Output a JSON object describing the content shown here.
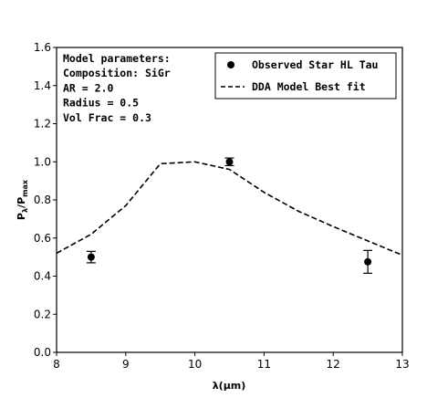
{
  "chart_data": {
    "type": "scatter",
    "xlabel": "λ(μm)",
    "ylabel": "Pλ/Pmax",
    "ylabel_main": "P",
    "ylabel_sub1": "λ",
    "ylabel_sep": "/P",
    "ylabel_sub2": "max",
    "xlim": [
      8,
      13
    ],
    "ylim": [
      0,
      1.6
    ],
    "xticks": [
      "8",
      "9",
      "10",
      "11",
      "12",
      "13"
    ],
    "yticks": [
      "0.0",
      "0.2",
      "0.4",
      "0.6",
      "0.8",
      "1.0",
      "1.2",
      "1.4",
      "1.6"
    ],
    "grid": false,
    "legend_position": "top-right",
    "series": [
      {
        "name": "Observed Star HL Tau",
        "kind": "errorbar-points",
        "color": "#000000",
        "x": [
          8.5,
          10.5,
          12.5
        ],
        "y": [
          0.5,
          1.0,
          0.475
        ],
        "yerr": [
          0.03,
          0.02,
          0.06
        ]
      },
      {
        "name": "DDA Model Best fit",
        "kind": "dashed-line",
        "color": "#000000",
        "x": [
          8.0,
          8.5,
          9.0,
          9.5,
          10.0,
          10.5,
          11.0,
          11.5,
          12.0,
          12.5,
          13.0
        ],
        "y": [
          0.52,
          0.62,
          0.77,
          0.99,
          1.0,
          0.96,
          0.84,
          0.74,
          0.66,
          0.585,
          0.51
        ]
      }
    ],
    "annotation_lines": [
      "Model parameters:",
      "Composition: SiGr",
      "AR = 2.0",
      "Radius = 0.5",
      "Vol Frac = 0.3"
    ]
  }
}
